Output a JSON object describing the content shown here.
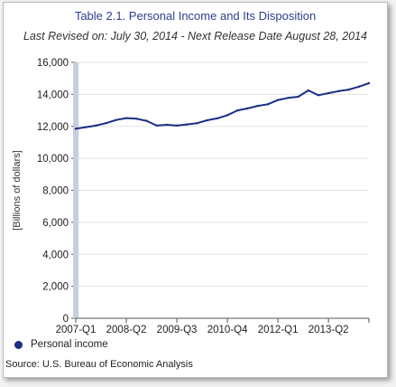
{
  "chart_data": {
    "type": "line",
    "title": "Table 2.1. Personal Income and Its Disposition",
    "subtitle": "Last Revised on: July 30, 2014 - Next Release Date August 28, 2014",
    "ylabel": "[Billions of dollars]",
    "xlabel": "",
    "ylim": [
      0,
      16000
    ],
    "yticks": [
      0,
      2000,
      4000,
      6000,
      8000,
      10000,
      12000,
      14000,
      16000
    ],
    "ytick_labels": [
      "0",
      "2,000",
      "4,000",
      "6,000",
      "8,000",
      "10,000",
      "12,000",
      "14,000",
      "16,000"
    ],
    "xtick_labels": [
      "2007-Q1",
      "2008-Q2",
      "2009-Q3",
      "2010-Q4",
      "2012-Q1",
      "2013-Q2"
    ],
    "grid": true,
    "legend_position": "bottom-left",
    "series": [
      {
        "name": "Personal income",
        "color": "#1c2f85",
        "x": [
          "2007-Q1",
          "2007-Q2",
          "2007-Q3",
          "2007-Q4",
          "2008-Q1",
          "2008-Q2",
          "2008-Q3",
          "2008-Q4",
          "2009-Q1",
          "2009-Q2",
          "2009-Q3",
          "2009-Q4",
          "2010-Q1",
          "2010-Q2",
          "2010-Q3",
          "2010-Q4",
          "2011-Q1",
          "2011-Q2",
          "2011-Q3",
          "2011-Q4",
          "2012-Q1",
          "2012-Q2",
          "2012-Q3",
          "2012-Q4",
          "2013-Q1",
          "2013-Q2",
          "2013-Q3",
          "2013-Q4",
          "2014-Q1",
          "2014-Q2"
        ],
        "values": [
          11850,
          11950,
          12050,
          12200,
          12400,
          12520,
          12480,
          12350,
          12050,
          12100,
          12050,
          12120,
          12200,
          12380,
          12500,
          12700,
          13000,
          13120,
          13280,
          13380,
          13650,
          13780,
          13850,
          14250,
          13950,
          14080,
          14200,
          14300,
          14480,
          14700
        ]
      }
    ]
  },
  "legend": {
    "label": "Personal income"
  },
  "source": "Source: U.S. Bureau of Economic Analysis"
}
